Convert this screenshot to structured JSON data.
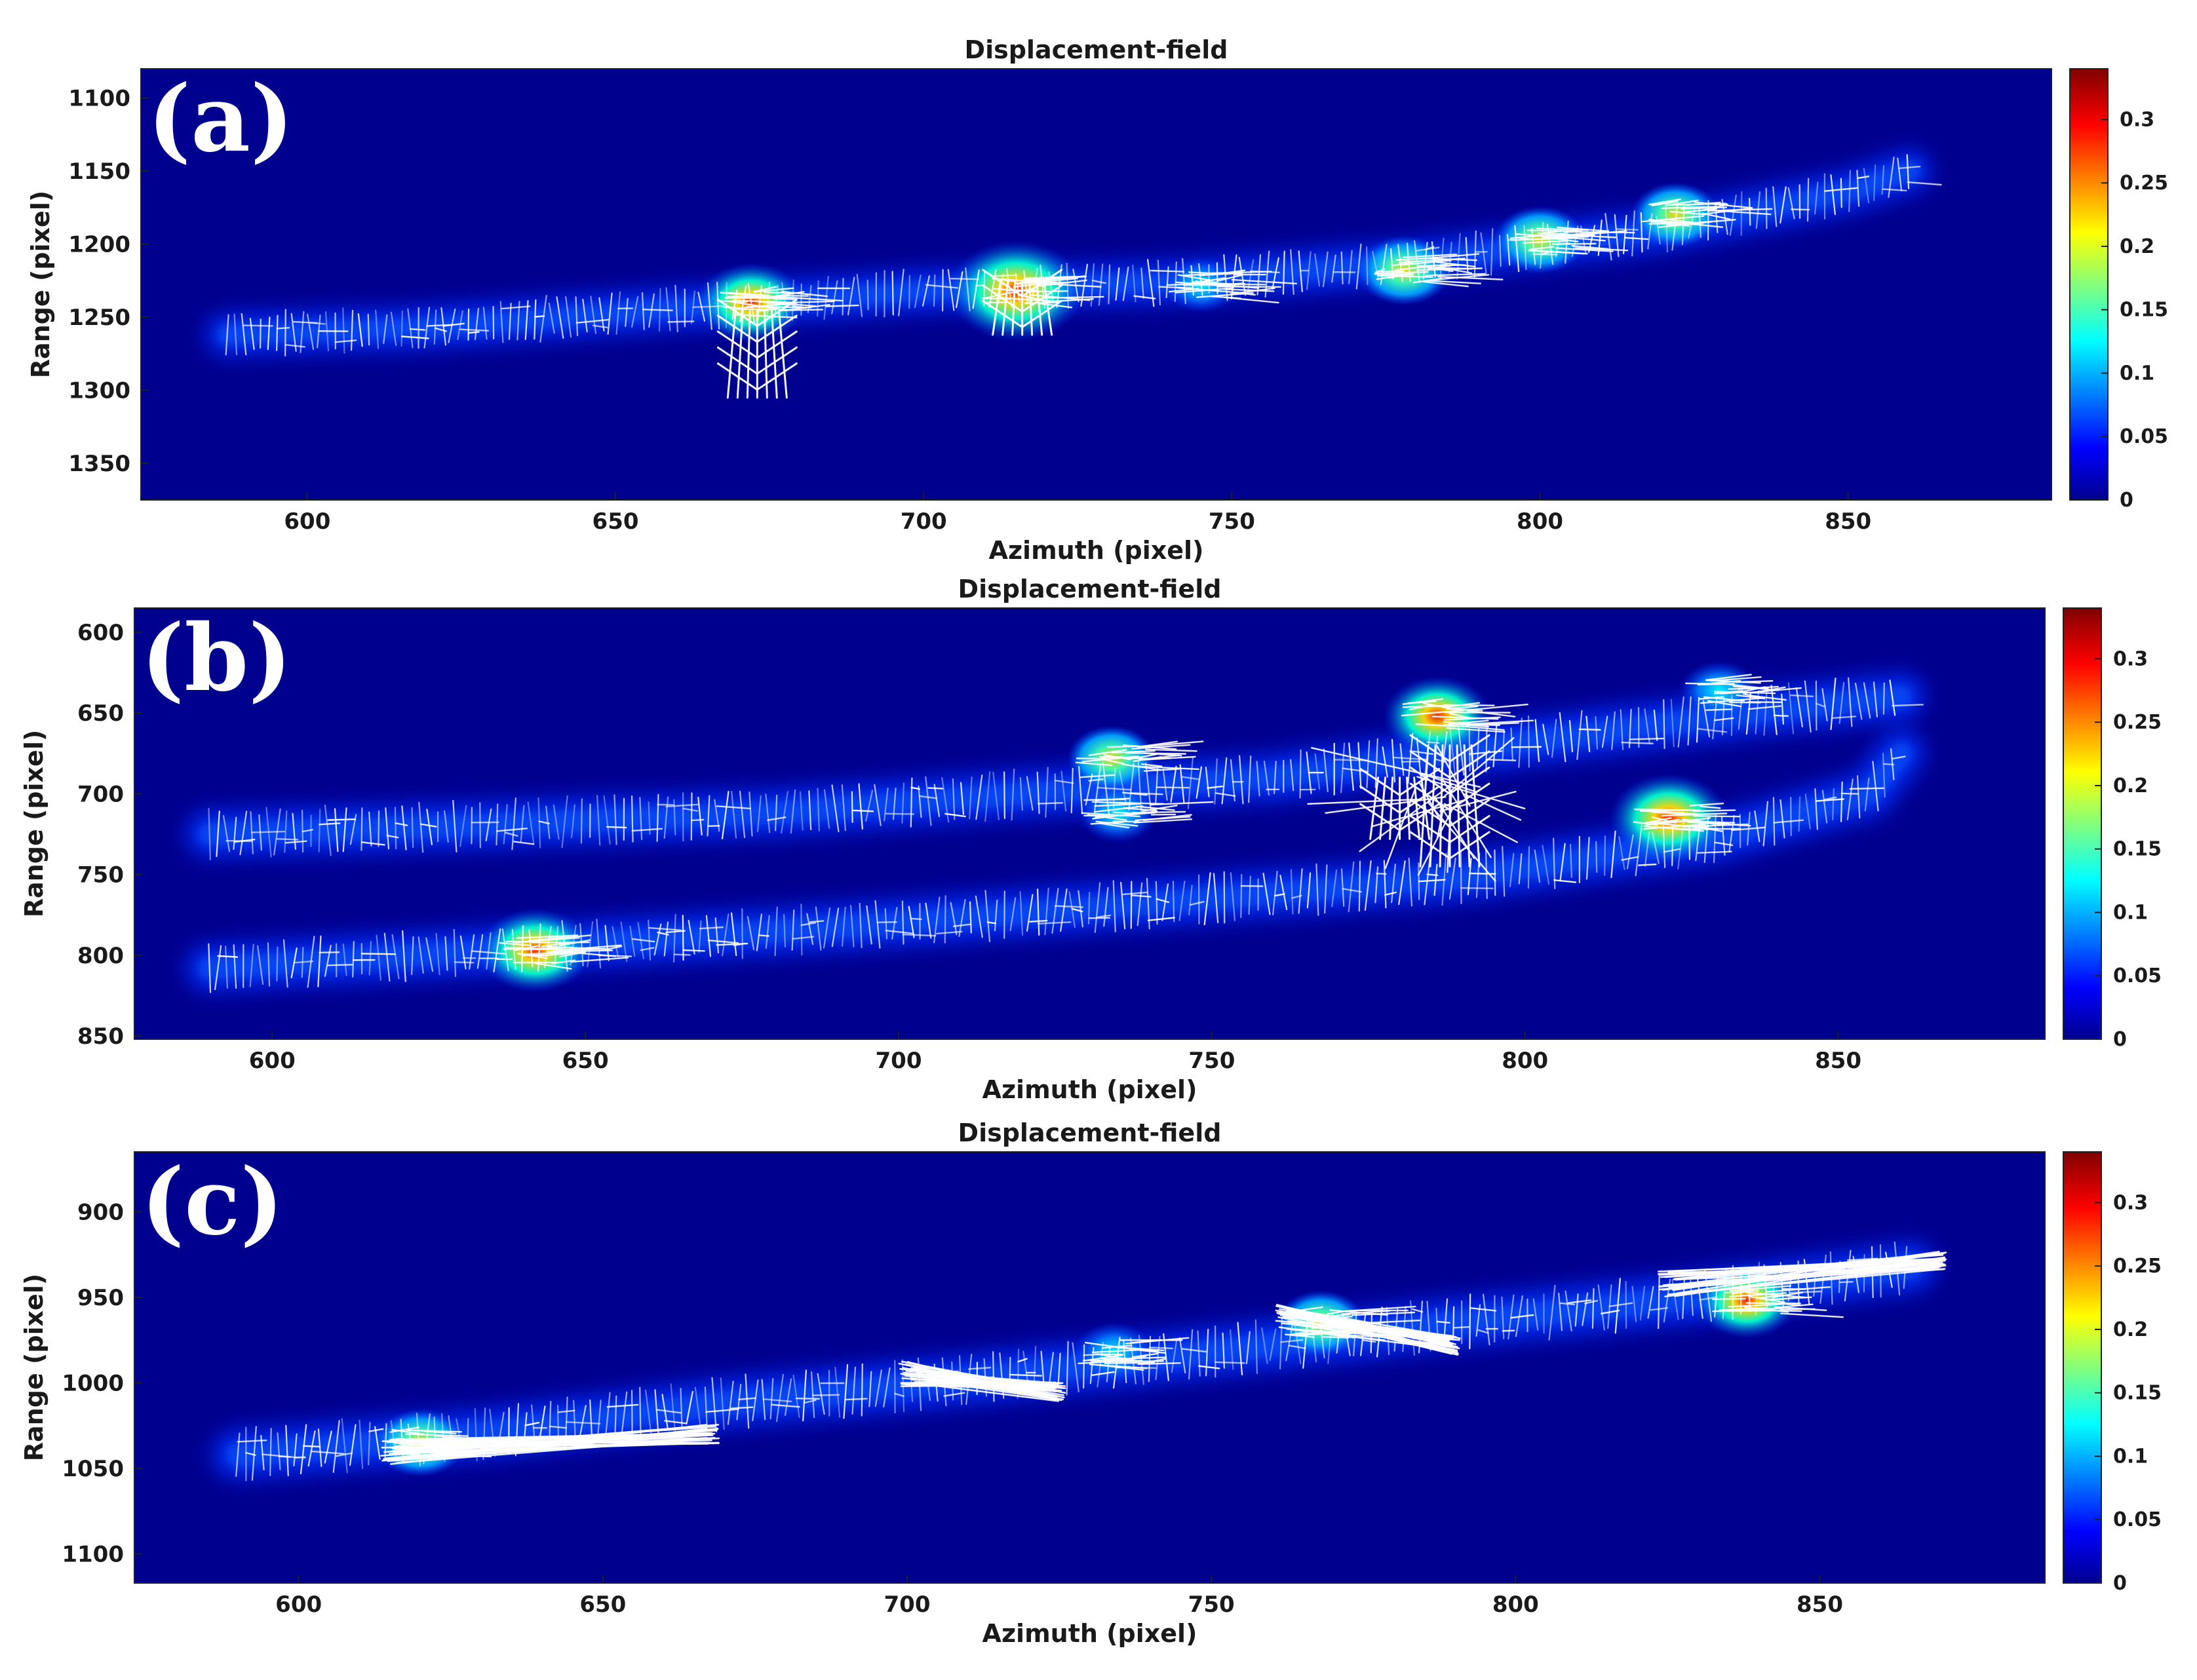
{
  "chart_data": [
    {
      "panel_label": "(a)",
      "type": "heatmap",
      "title": "Displacement-field",
      "xlabel": "Azimuth (pixel)",
      "ylabel": "Range (pixel)",
      "xlim": [
        573,
        883
      ],
      "ylim": [
        1080,
        1375
      ],
      "y_reversed": true,
      "xticks": [
        600,
        650,
        700,
        750,
        800,
        850
      ],
      "yticks": [
        1100,
        1150,
        1200,
        1250,
        1300,
        1350
      ],
      "colorbar": {
        "min": 0,
        "max": 0.34,
        "ticks": [
          0,
          0.05,
          0.1,
          0.15,
          0.2,
          0.25,
          0.3
        ],
        "colormap": "jet"
      },
      "background_color": "#00008f",
      "vector_color": "#ffffff",
      "band": [
        [
          587,
          1262
        ],
        [
          620,
          1257
        ],
        [
          660,
          1244
        ],
        [
          700,
          1232
        ],
        [
          740,
          1226
        ],
        [
          780,
          1212
        ],
        [
          820,
          1190
        ],
        [
          850,
          1164
        ],
        [
          860,
          1150
        ]
      ],
      "hotspots": [
        {
          "x": 672,
          "y": 1240,
          "value": 0.22
        },
        {
          "x": 715,
          "y": 1232,
          "value": 0.32
        },
        {
          "x": 778,
          "y": 1218,
          "value": 0.17
        },
        {
          "x": 800,
          "y": 1197,
          "value": 0.16
        },
        {
          "x": 822,
          "y": 1180,
          "value": 0.15
        },
        {
          "x": 745,
          "y": 1228,
          "value": 0.1
        }
      ],
      "big_vectors": [
        {
          "x": 673,
          "y1": 1245,
          "y2": 1305
        },
        {
          "x": 716,
          "y1": 1225,
          "y2": 1262
        }
      ]
    },
    {
      "panel_label": "(b)",
      "type": "heatmap",
      "title": "Displacement-field",
      "xlabel": "Azimuth (pixel)",
      "ylabel": "Range (pixel)",
      "xlim": [
        578,
        883
      ],
      "ylim": [
        585,
        852
      ],
      "y_reversed": true,
      "xticks": [
        600,
        650,
        700,
        750,
        800,
        850
      ],
      "yticks": [
        600,
        650,
        700,
        750,
        800,
        850
      ],
      "colorbar": {
        "min": 0,
        "max": 0.34,
        "ticks": [
          0,
          0.05,
          0.1,
          0.15,
          0.2,
          0.25,
          0.3
        ],
        "colormap": "jet"
      },
      "background_color": "#00008f",
      "vector_color": "#ffffff",
      "bands": [
        [
          [
            590,
            725
          ],
          [
            630,
            720
          ],
          [
            680,
            712
          ],
          [
            720,
            700
          ],
          [
            760,
            690
          ],
          [
            800,
            668
          ],
          [
            840,
            648
          ],
          [
            860,
            640
          ]
        ],
        [
          [
            590,
            808
          ],
          [
            640,
            796
          ],
          [
            700,
            780
          ],
          [
            740,
            768
          ],
          [
            790,
            752
          ],
          [
            830,
            728
          ],
          [
            855,
            700
          ],
          [
            860,
            675
          ]
        ]
      ],
      "hotspots": [
        {
          "x": 786,
          "y": 652,
          "value": 0.22
        },
        {
          "x": 823,
          "y": 715,
          "value": 0.26
        },
        {
          "x": 642,
          "y": 797,
          "value": 0.24
        },
        {
          "x": 734,
          "y": 678,
          "value": 0.15
        },
        {
          "x": 735,
          "y": 712,
          "value": 0.12
        },
        {
          "x": 831,
          "y": 636,
          "value": 0.12
        }
      ],
      "big_vectors": [
        {
          "x": 788,
          "y1": 670,
          "y2": 745
        },
        {
          "x": 780,
          "y1": 690,
          "y2": 728
        }
      ]
    },
    {
      "panel_label": "(c)",
      "type": "heatmap",
      "title": "Displacement-field",
      "xlabel": "Azimuth (pixel)",
      "ylabel": "Range (pixel)",
      "xlim": [
        573,
        887
      ],
      "ylim": [
        865,
        1117
      ],
      "y_reversed": true,
      "xticks": [
        600,
        650,
        700,
        750,
        800,
        850
      ],
      "yticks": [
        900,
        950,
        1000,
        1050,
        1100
      ],
      "colorbar": {
        "min": 0,
        "max": 0.34,
        "ticks": [
          0,
          0.05,
          0.1,
          0.15,
          0.2,
          0.25,
          0.3
        ],
        "colormap": "jet"
      },
      "background_color": "#00008f",
      "vector_color": "#ffffff",
      "band": [
        [
          590,
          1042
        ],
        [
          630,
          1030
        ],
        [
          670,
          1012
        ],
        [
          710,
          998
        ],
        [
          750,
          982
        ],
        [
          790,
          965
        ],
        [
          830,
          950
        ],
        [
          865,
          932
        ]
      ],
      "hotspots": [
        {
          "x": 620,
          "y": 1035,
          "value": 0.16
        },
        {
          "x": 838,
          "y": 952,
          "value": 0.2
        },
        {
          "x": 768,
          "y": 965,
          "value": 0.15
        },
        {
          "x": 734,
          "y": 982,
          "value": 0.12
        }
      ],
      "streaks": [
        {
          "x1": 615,
          "y1": 1040,
          "x2": 668,
          "y2": 1030
        },
        {
          "x1": 700,
          "y1": 995,
          "x2": 725,
          "y2": 1005
        },
        {
          "x1": 825,
          "y1": 942,
          "x2": 870,
          "y2": 928
        },
        {
          "x1": 762,
          "y1": 962,
          "x2": 790,
          "y2": 978
        }
      ]
    }
  ]
}
